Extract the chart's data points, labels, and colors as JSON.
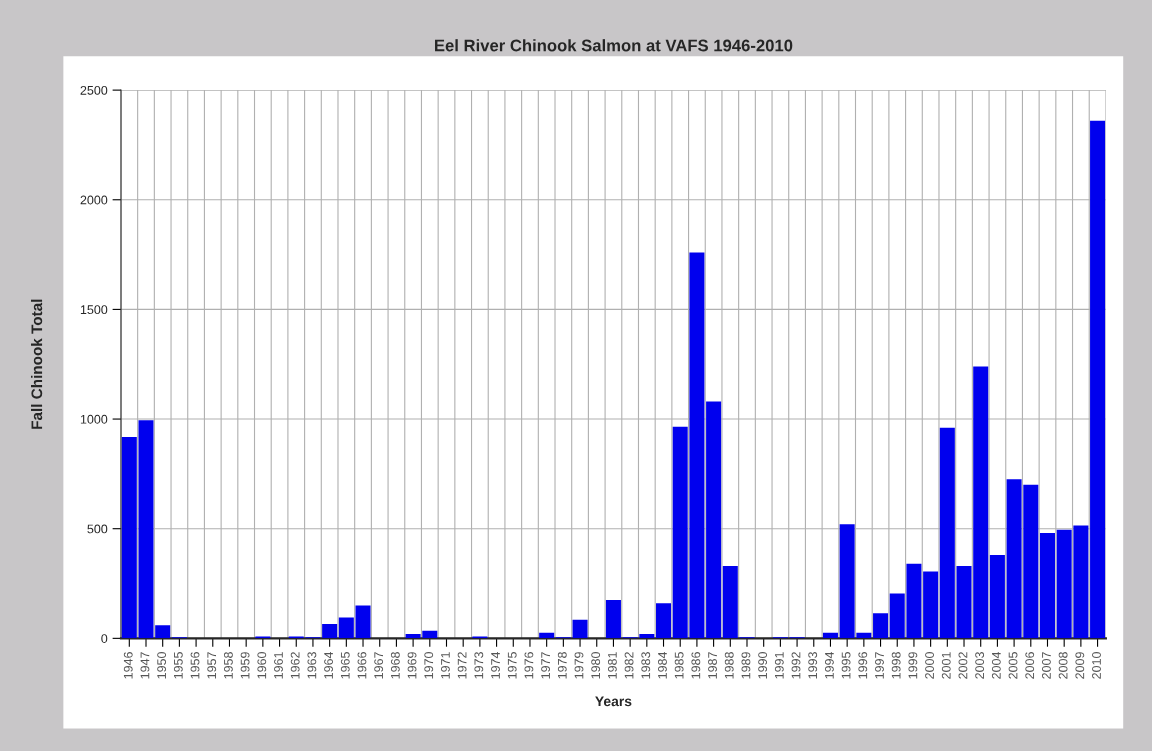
{
  "chart_data": {
    "type": "bar",
    "title": "Eel River Chinook Salmon at VAFS 1946-2010",
    "xlabel": "Years",
    "ylabel": "Fall Chinook Total",
    "categories": [
      "1946",
      "1947",
      "1950",
      "1955",
      "1956",
      "1957",
      "1958",
      "1959",
      "1960",
      "1961",
      "1962",
      "1963",
      "1964",
      "1965",
      "1966",
      "1967",
      "1968",
      "1969",
      "1970",
      "1971",
      "1972",
      "1973",
      "1974",
      "1975",
      "1976",
      "1977",
      "1978",
      "1979",
      "1980",
      "1981",
      "1982",
      "1983",
      "1984",
      "1985",
      "1986",
      "1987",
      "1988",
      "1989",
      "1990",
      "1991",
      "1992",
      "1993",
      "1994",
      "1995",
      "1996",
      "1997",
      "1998",
      "1999",
      "2000",
      "2001",
      "2002",
      "2003",
      "2004",
      "2005",
      "2006",
      "2007",
      "2008",
      "2009",
      "2010"
    ],
    "values": [
      918,
      995,
      60,
      5,
      0,
      0,
      0,
      0,
      8,
      0,
      8,
      5,
      65,
      95,
      150,
      0,
      0,
      20,
      35,
      0,
      0,
      8,
      0,
      0,
      0,
      25,
      5,
      85,
      0,
      175,
      5,
      20,
      160,
      965,
      1760,
      1080,
      330,
      5,
      0,
      5,
      5,
      0,
      25,
      520,
      25,
      115,
      205,
      340,
      305,
      960,
      330,
      1240,
      380,
      725,
      700,
      480,
      495,
      515,
      2360
    ],
    "color": "#0000ee",
    "ylim": [
      0,
      2500
    ],
    "yticks": [
      0,
      500,
      1000,
      1500,
      2000,
      2500
    ],
    "grid": true
  }
}
